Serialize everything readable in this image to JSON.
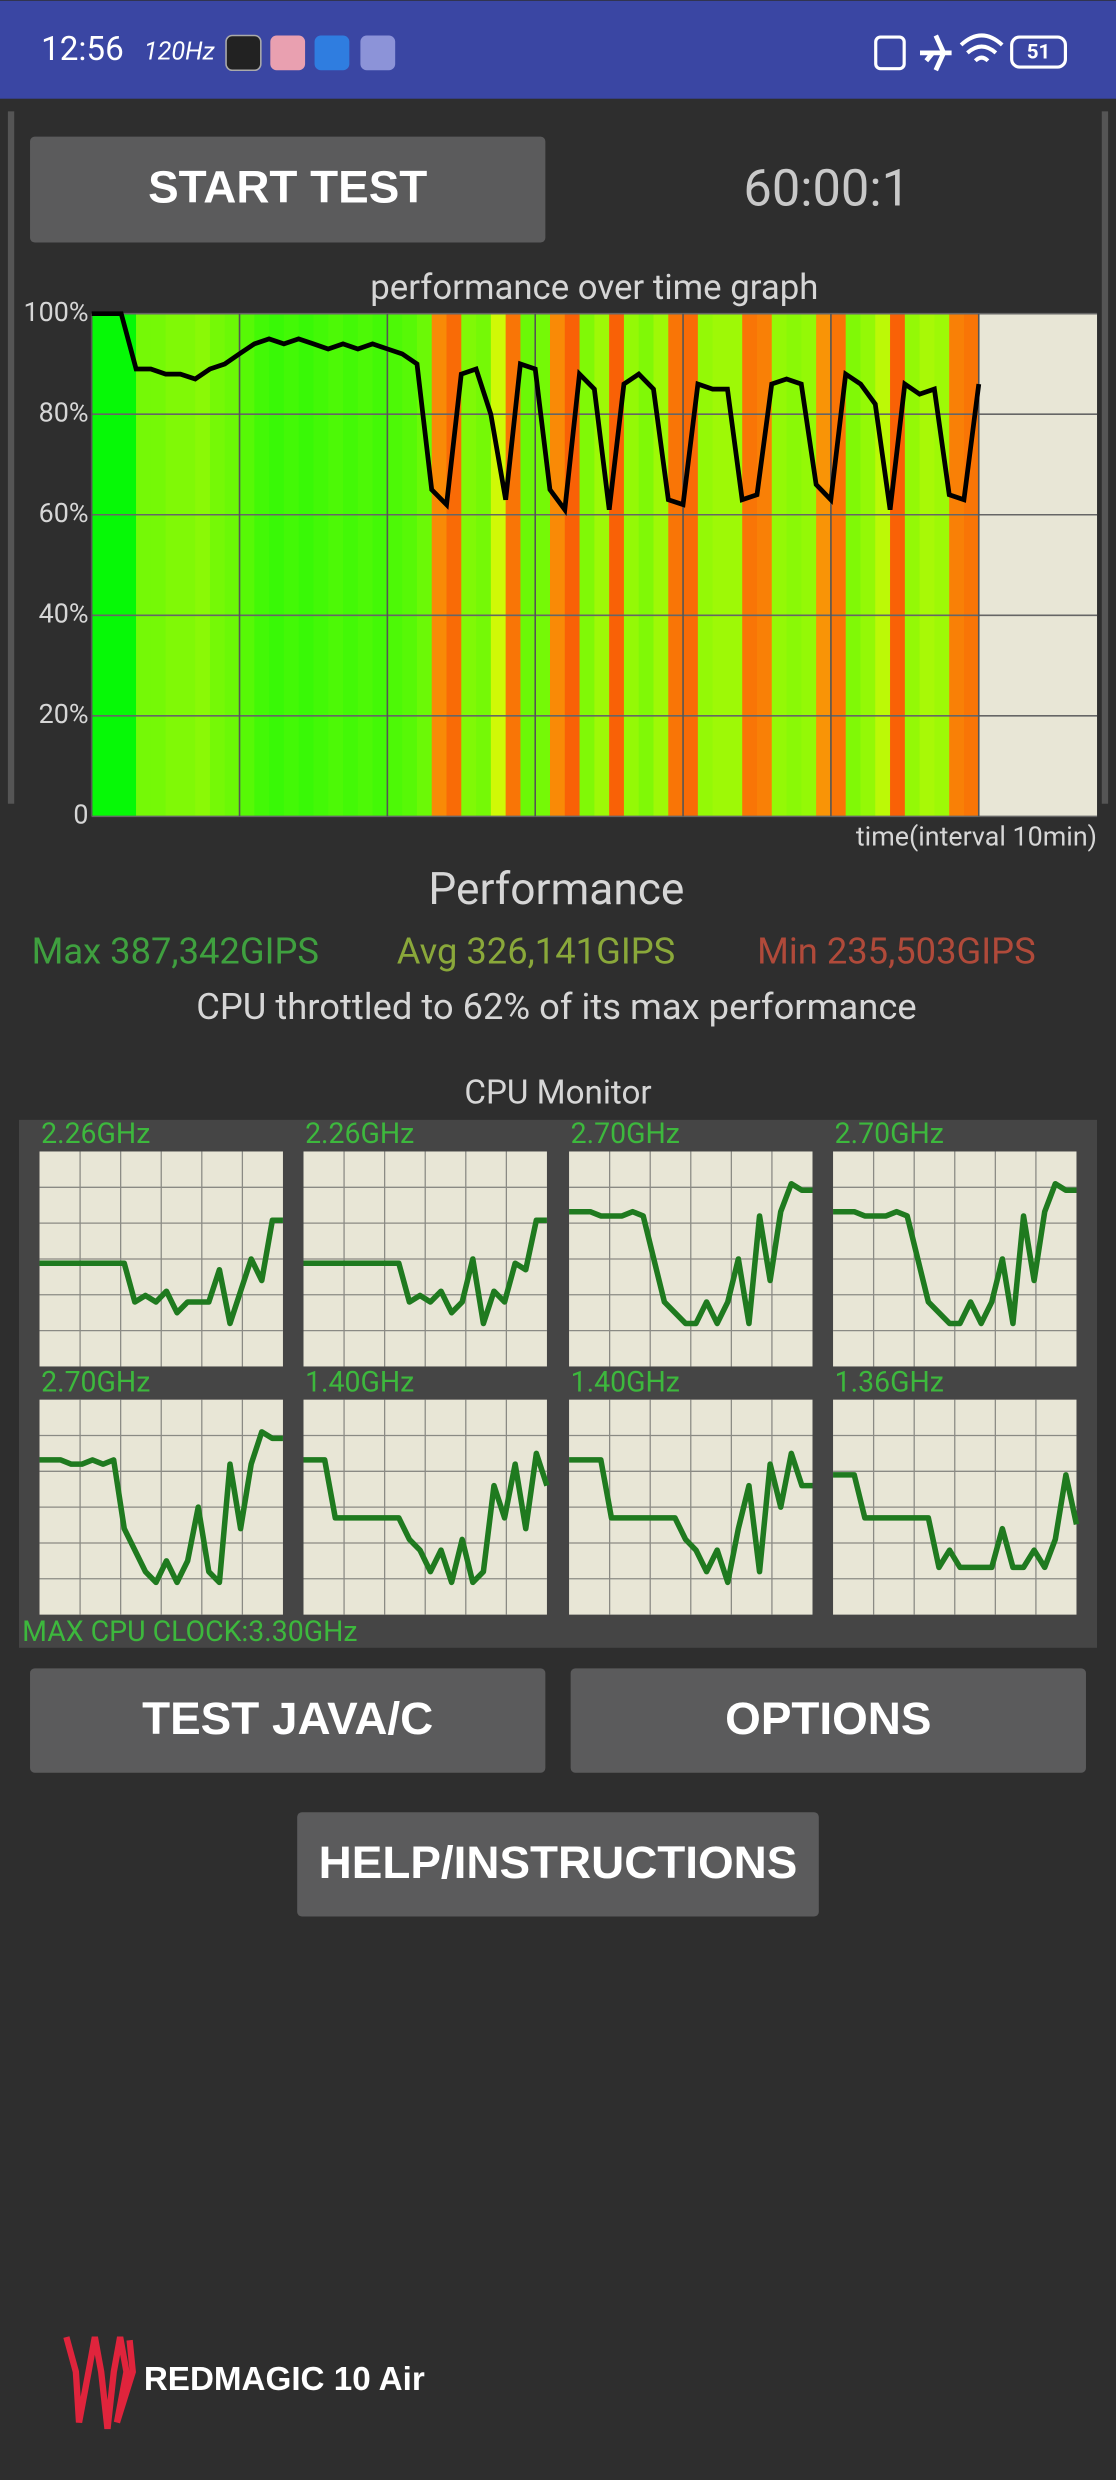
{
  "screen": {
    "status_time": "12:56",
    "refresh_rate": "120Hz",
    "battery": "51",
    "start_button": "START TEST",
    "timer": "60:00:1",
    "performance_heading": "Performance",
    "max": "Max 387,342GIPS",
    "avg": "Avg 326,141GIPS",
    "min": "Min 235,503GIPS",
    "throttle_note": "CPU throttled to 62% of its max performance",
    "cpu_monitor_title": "CPU Monitor",
    "max_cpu_clock": "MAX CPU CLOCK:3.30GHz",
    "test_button": "TEST JAVA/C",
    "options_button": "OPTIONS",
    "help_button": "HELP/INSTRUCTIONS",
    "brand": "REDMAGIC 10 Air"
  },
  "chart_data": [
    {
      "type": "area",
      "title": "performance over time graph",
      "xlabel": "time(interval 10min)",
      "x": [
        0,
        1,
        2,
        3,
        4,
        5,
        6,
        7,
        8,
        9,
        10,
        11,
        12,
        13,
        14,
        15,
        16,
        17,
        18,
        19,
        20,
        21,
        22,
        23,
        24,
        25,
        26,
        27,
        28,
        29,
        30,
        31,
        32,
        33,
        34,
        35,
        36,
        37,
        38,
        39,
        40,
        41,
        42,
        43,
        44,
        45,
        46,
        47,
        48,
        49,
        50,
        51,
        52,
        53,
        54,
        55,
        56,
        57,
        58,
        59,
        60
      ],
      "values": [
        100,
        100,
        100,
        89,
        89,
        88,
        88,
        87,
        89,
        90,
        92,
        94,
        95,
        94,
        95,
        94,
        93,
        94,
        93,
        94,
        93,
        92,
        90,
        65,
        62,
        88,
        89,
        80,
        63,
        90,
        89,
        65,
        61,
        88,
        85,
        61,
        86,
        88,
        85,
        63,
        62,
        86,
        85,
        85,
        63,
        64,
        86,
        87,
        86,
        66,
        63,
        88,
        86,
        82,
        61,
        86,
        84,
        85,
        64,
        63,
        86
      ],
      "xlim": [
        0,
        68
      ],
      "xticks": [
        0,
        10,
        20,
        30,
        40,
        50,
        60
      ],
      "ylim": [
        0,
        100
      ],
      "yticks": [
        0,
        {
          "value": 20,
          "label": "20%"
        },
        {
          "value": 40,
          "label": "40%"
        },
        {
          "value": 60,
          "label": "60%"
        },
        {
          "value": 80,
          "label": "80%"
        },
        {
          "value": 100,
          "label": "100%"
        }
      ],
      "color": "#000000",
      "grid": true
    },
    {
      "type": "line",
      "title": "2.26GHz",
      "ylim": [
        0,
        100
      ],
      "color": "#1f7a1f",
      "values": [
        48,
        48,
        48,
        48,
        48,
        48,
        48,
        48,
        48,
        30,
        33,
        30,
        35,
        25,
        30,
        30,
        30,
        45,
        20,
        35,
        50,
        40,
        68,
        68
      ]
    },
    {
      "type": "line",
      "title": "2.26GHz",
      "ylim": [
        0,
        100
      ],
      "color": "#1f7a1f",
      "values": [
        48,
        48,
        48,
        48,
        48,
        48,
        48,
        48,
        48,
        48,
        30,
        33,
        30,
        35,
        25,
        30,
        50,
        20,
        35,
        30,
        48,
        45,
        68,
        68
      ]
    },
    {
      "type": "line",
      "title": "2.70GHz",
      "ylim": [
        0,
        100
      ],
      "color": "#1f7a1f",
      "values": [
        72,
        72,
        72,
        70,
        70,
        70,
        72,
        70,
        50,
        30,
        25,
        20,
        20,
        30,
        20,
        30,
        50,
        20,
        70,
        40,
        72,
        85,
        82,
        82
      ]
    },
    {
      "type": "line",
      "title": "2.70GHz",
      "ylim": [
        0,
        100
      ],
      "color": "#1f7a1f",
      "values": [
        72,
        72,
        72,
        70,
        70,
        70,
        72,
        70,
        50,
        30,
        25,
        20,
        20,
        30,
        20,
        30,
        50,
        20,
        70,
        40,
        72,
        85,
        82,
        82
      ]
    },
    {
      "type": "line",
      "title": "2.70GHz",
      "ylim": [
        0,
        100
      ],
      "color": "#1f7a1f",
      "values": [
        72,
        72,
        72,
        70,
        70,
        72,
        70,
        72,
        40,
        30,
        20,
        15,
        25,
        15,
        25,
        50,
        20,
        15,
        70,
        40,
        70,
        85,
        82,
        82
      ]
    },
    {
      "type": "line",
      "title": "1.40GHz",
      "ylim": [
        0,
        100
      ],
      "color": "#1f7a1f",
      "values": [
        72,
        72,
        72,
        45,
        45,
        45,
        45,
        45,
        45,
        45,
        35,
        30,
        20,
        30,
        15,
        35,
        15,
        20,
        60,
        45,
        70,
        40,
        75,
        60
      ]
    },
    {
      "type": "line",
      "title": "1.40GHz",
      "ylim": [
        0,
        100
      ],
      "color": "#1f7a1f",
      "values": [
        72,
        72,
        72,
        72,
        45,
        45,
        45,
        45,
        45,
        45,
        45,
        35,
        30,
        20,
        30,
        15,
        40,
        60,
        20,
        70,
        50,
        75,
        60,
        60
      ]
    },
    {
      "type": "line",
      "title": "1.36GHz",
      "ylim": [
        0,
        100
      ],
      "color": "#1f7a1f",
      "values": [
        65,
        65,
        65,
        45,
        45,
        45,
        45,
        45,
        45,
        45,
        22,
        30,
        22,
        22,
        22,
        22,
        40,
        22,
        22,
        30,
        22,
        35,
        65,
        42
      ]
    }
  ]
}
